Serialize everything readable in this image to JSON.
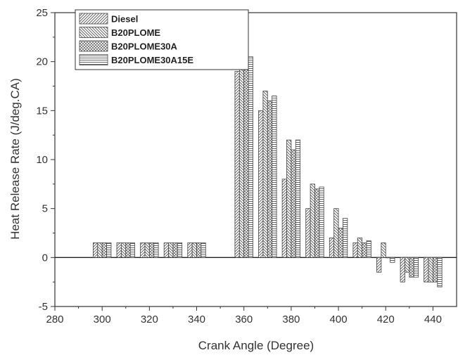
{
  "chart_data": {
    "type": "bar",
    "title": "",
    "xlabel": "Crank Angle (Degree)",
    "ylabel": "Heat Release Rate (J/deg.CA)",
    "xlim": [
      280,
      450
    ],
    "ylim": [
      -5,
      25
    ],
    "xticks": [
      "280",
      "300",
      "320",
      "340",
      "360",
      "380",
      "400",
      "420",
      "440"
    ],
    "yticks": [
      "-5",
      "0",
      "5",
      "10",
      "15",
      "20",
      "25"
    ],
    "grid": false,
    "legend_position": "top-left",
    "categories": [
      300,
      310,
      320,
      330,
      340,
      360,
      370,
      380,
      390,
      400,
      410,
      420,
      430,
      440
    ],
    "series": [
      {
        "name": "Diesel",
        "pattern": "diag-up",
        "values": [
          1.5,
          1.5,
          1.5,
          1.5,
          1.5,
          19,
          15,
          8,
          5,
          2,
          1.5,
          -1.5,
          -2.5,
          -2.5
        ]
      },
      {
        "name": "B20PLOME",
        "pattern": "diag-down",
        "values": [
          1.5,
          1.5,
          1.5,
          1.5,
          1.5,
          21,
          17,
          12,
          7.5,
          5,
          2,
          1.5,
          -1.5,
          -2.5
        ]
      },
      {
        "name": "B20PLOME30A",
        "pattern": "crosshatch",
        "values": [
          1.5,
          1.5,
          1.5,
          1.5,
          1.5,
          20,
          16,
          11,
          7,
          3,
          1.5,
          0,
          -2,
          -2.5
        ]
      },
      {
        "name": "B20PLOME30A15E",
        "pattern": "horizontal",
        "values": [
          1.5,
          1.5,
          1.5,
          1.5,
          1.5,
          20.5,
          16.5,
          12,
          7.2,
          4,
          1.7,
          -0.5,
          -2,
          -3
        ]
      }
    ],
    "colors": {
      "stroke": "#444444",
      "axis": "#333333",
      "pattern": "#555555"
    }
  }
}
